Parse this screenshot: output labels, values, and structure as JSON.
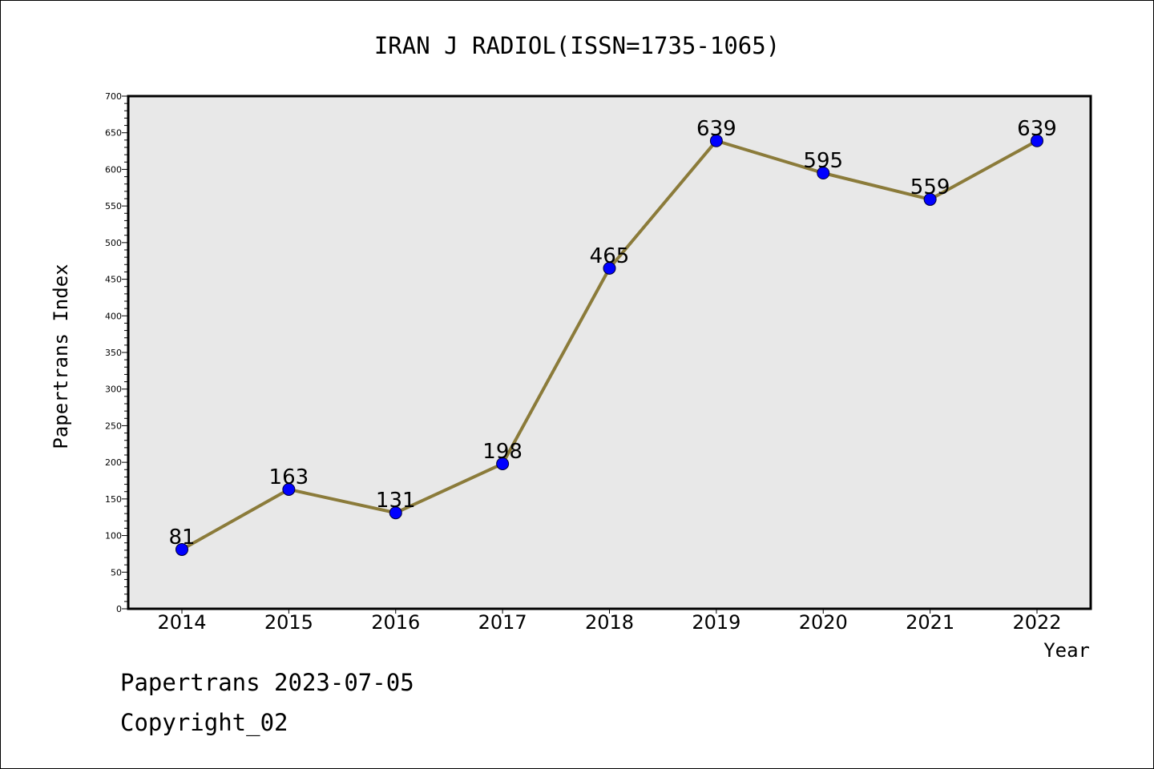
{
  "chart_data": {
    "type": "line",
    "title": "IRAN J RADIOL(ISSN=1735-1065)",
    "xlabel": "Year",
    "ylabel": "Papertrans Index",
    "categories": [
      "2014",
      "2015",
      "2016",
      "2017",
      "2018",
      "2019",
      "2020",
      "2021",
      "2022"
    ],
    "series": [
      {
        "values": [
          81,
          163,
          131,
          198,
          465,
          639,
          595,
          559,
          639
        ]
      }
    ],
    "data_labels": [
      "81",
      "163",
      "131",
      "198",
      "465",
      "639",
      "595",
      "559",
      "639"
    ],
    "ylim": [
      0,
      700
    ],
    "y_ticks": [
      "0",
      "50",
      "100",
      "150",
      "200",
      "250",
      "300",
      "350",
      "400",
      "450",
      "500",
      "550",
      "600",
      "650",
      "700"
    ],
    "line_color": "#8B7B3A",
    "marker_color": "#0000FF",
    "plot_background": "#E8E8E8",
    "grid": false
  },
  "footer": {
    "date_line": "Papertrans 2023-07-05",
    "copyright": "Copyright_02"
  }
}
